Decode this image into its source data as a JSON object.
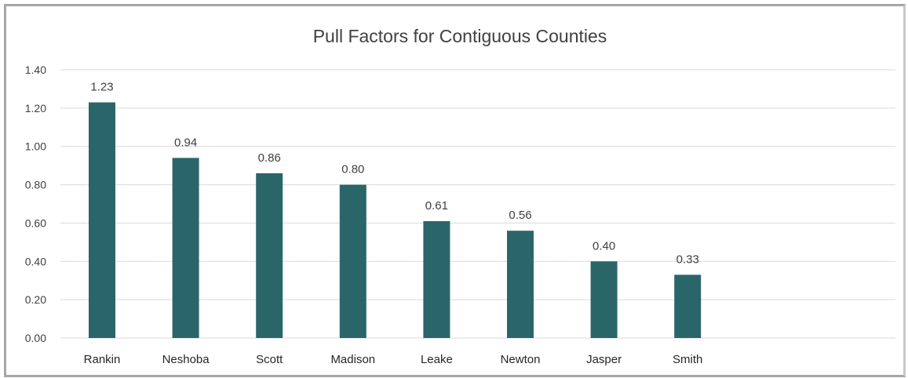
{
  "chart_data": {
    "type": "bar",
    "title": "Pull Factors for Contiguous Counties",
    "xlabel": "",
    "ylabel": "",
    "categories": [
      "Rankin",
      "Neshoba",
      "Scott",
      "Madison",
      "Leake",
      "Newton",
      "Jasper",
      "Smith"
    ],
    "values": [
      1.23,
      0.94,
      0.86,
      0.8,
      0.61,
      0.56,
      0.4,
      0.33
    ],
    "data_labels": [
      "1.23",
      "0.94",
      "0.86",
      "0.80",
      "0.61",
      "0.56",
      "0.40",
      "0.33"
    ],
    "ylim": [
      0,
      1.4
    ],
    "y_ticks": [
      "0.00",
      "0.20",
      "0.40",
      "0.60",
      "0.80",
      "1.00",
      "1.20",
      "1.40"
    ],
    "grid": true,
    "legend": "none",
    "bar_color": "#2a6669"
  }
}
